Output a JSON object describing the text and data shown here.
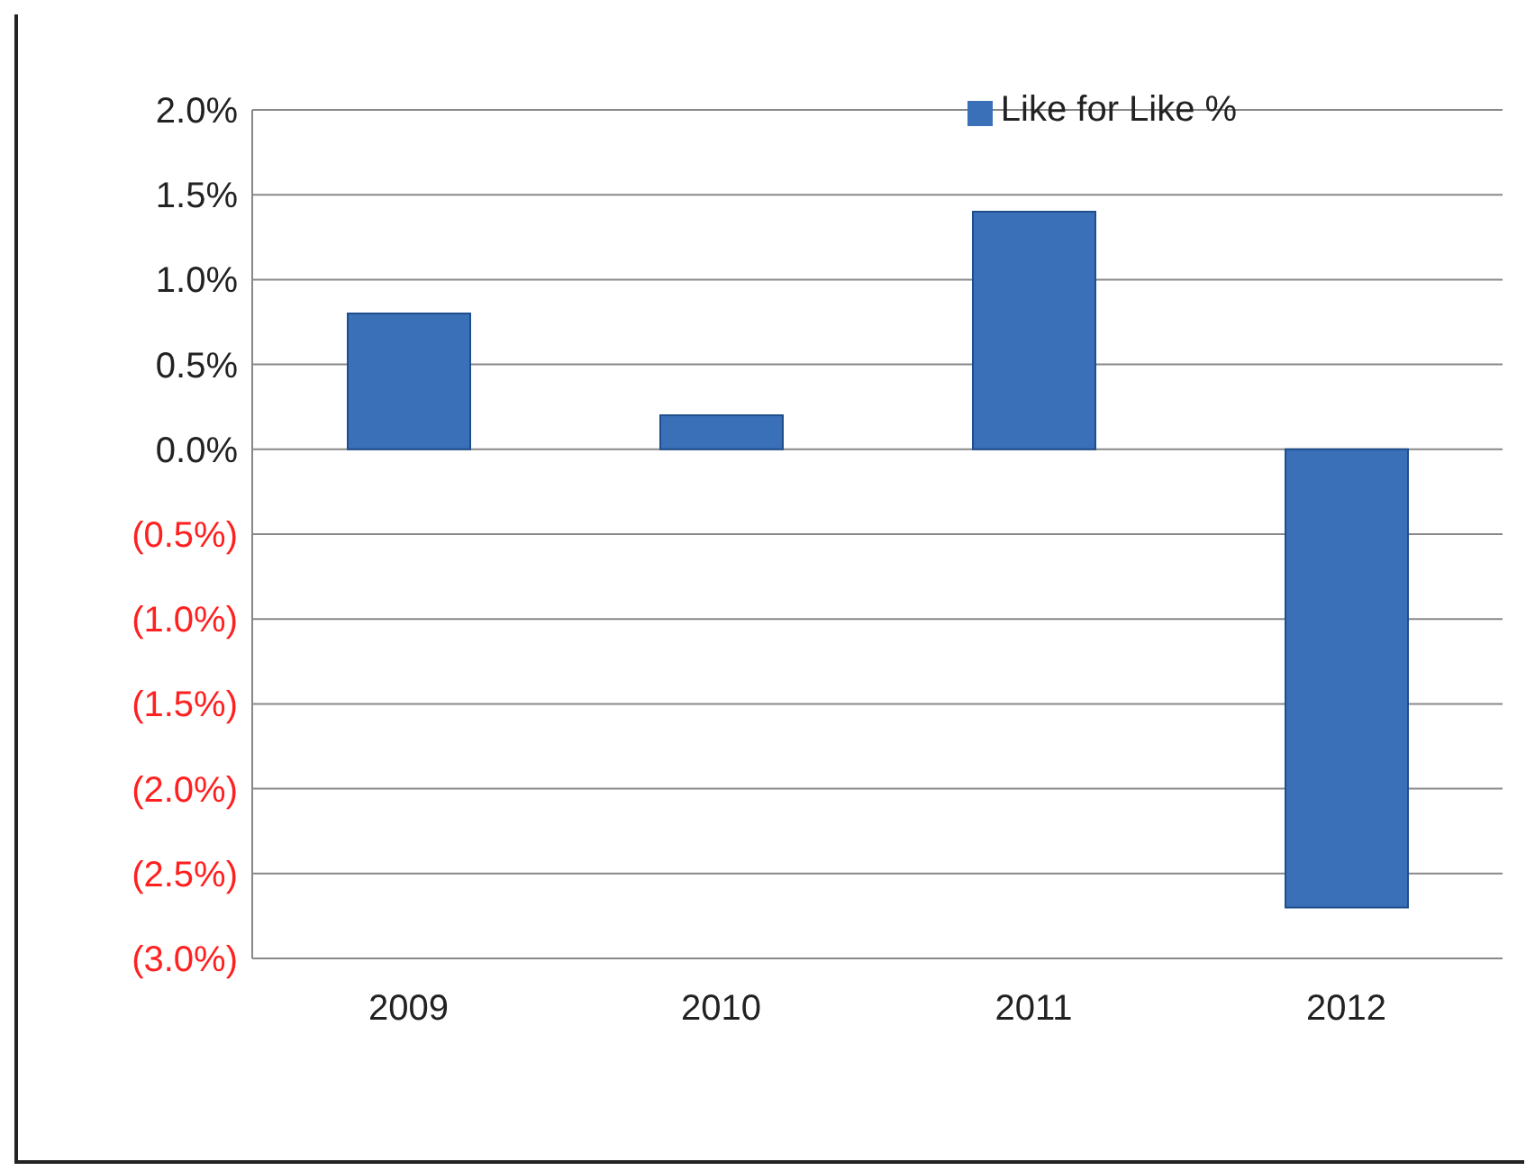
{
  "chart_data": {
    "type": "bar",
    "categories": [
      "2009",
      "2010",
      "2011",
      "2012"
    ],
    "series": [
      {
        "name": "Like for Like %",
        "color": "#3a70b8",
        "values": [
          0.8,
          0.2,
          1.4,
          -2.7
        ]
      }
    ],
    "ylim": [
      -3,
      2
    ],
    "yticks": [
      {
        "value": 2,
        "label": "2.0%"
      },
      {
        "value": 1.5,
        "label": "1.5%"
      },
      {
        "value": 1,
        "label": "1.0%"
      },
      {
        "value": 0.5,
        "label": "0.5%"
      },
      {
        "value": 0,
        "label": "0.0%"
      },
      {
        "value": -0.5,
        "label": "(0.5%)"
      },
      {
        "value": -1,
        "label": "(1.0%)"
      },
      {
        "value": -1.5,
        "label": "(1.5%)"
      },
      {
        "value": -2,
        "label": "(2.0%)"
      },
      {
        "value": -2.5,
        "label": "(2.5%)"
      },
      {
        "value": -3,
        "label": "(3.0%)"
      }
    ],
    "grid": "y",
    "legend": "top"
  }
}
